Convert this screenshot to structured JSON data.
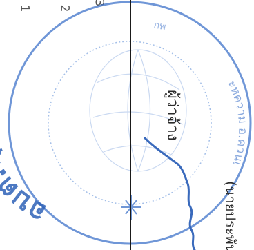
{
  "line_numbers": [
    "1",
    "2",
    "3"
  ],
  "seal": {
    "text_top": "อบต.ทุ่งลาน",
    "text_bottom": "ะหความ อ.ควนเ",
    "text_side": "กพ",
    "ink_color": "#2f62b8"
  },
  "signature": {
    "role_label": "ผู้ว่าจ้าง",
    "name_label": "(นายประพัน)"
  }
}
